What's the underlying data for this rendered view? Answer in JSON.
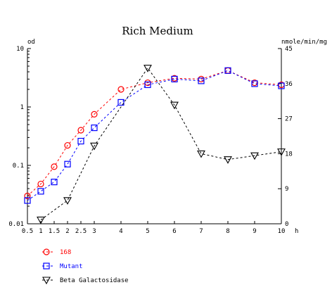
{
  "chart_data": {
    "type": "line",
    "title": "Rich Medium",
    "xlabel": "h",
    "ylabel_left": "od",
    "ylabel_right": "nmole/min/mg",
    "x_ticks": [
      0.5,
      1,
      1.5,
      2,
      2.5,
      3,
      4,
      5,
      6,
      7,
      8,
      9,
      10
    ],
    "x_tick_labels": [
      "0.5",
      "1",
      "1.5",
      "2",
      "2.5",
      "3",
      "4",
      "5",
      "6",
      "7",
      "8",
      "9",
      "10"
    ],
    "xlim": [
      0.5,
      10
    ],
    "y_left": {
      "scale": "log",
      "ylim": [
        0.01,
        10
      ],
      "tick_labels": [
        "0.01",
        "0.1",
        "1",
        "10"
      ],
      "ticks": [
        0.01,
        0.1,
        1,
        10
      ]
    },
    "y_right": {
      "scale": "linear",
      "ylim": [
        0,
        45
      ],
      "tick_labels": [
        "0",
        "9",
        "18",
        "27",
        "36",
        "45"
      ],
      "ticks": [
        0,
        9,
        18,
        27,
        36,
        45
      ]
    },
    "grid": false,
    "legend_position": "bottom-left",
    "series": [
      {
        "name": "168",
        "axis": "left",
        "color": "#ff0000",
        "marker": "circle",
        "x": [
          0.5,
          1,
          1.5,
          2,
          2.5,
          3,
          4,
          5,
          6,
          7,
          8,
          9,
          10
        ],
        "y": [
          0.03,
          0.048,
          0.095,
          0.22,
          0.4,
          0.75,
          2.0,
          2.6,
          3.1,
          3.0,
          4.2,
          2.6,
          2.4
        ]
      },
      {
        "name": "Mutant",
        "axis": "left",
        "color": "#0000ff",
        "marker": "square",
        "x": [
          0.5,
          1,
          1.5,
          2,
          2.5,
          3,
          4,
          5,
          6,
          7,
          8,
          9,
          10
        ],
        "y": [
          0.025,
          0.036,
          0.052,
          0.105,
          0.26,
          0.44,
          1.2,
          2.4,
          3.0,
          2.8,
          4.2,
          2.5,
          2.3
        ]
      },
      {
        "name": "Beta Galactosidase",
        "axis": "right",
        "color": "#000000",
        "marker": "triangle-down",
        "x": [
          1,
          2,
          3,
          5,
          6,
          7,
          8,
          9,
          10
        ],
        "y": [
          1,
          6,
          20,
          40,
          30.5,
          18,
          16.5,
          17.5,
          18.5
        ]
      }
    ]
  },
  "colors": {
    "axis": "#000000",
    "background": "#ffffff"
  }
}
